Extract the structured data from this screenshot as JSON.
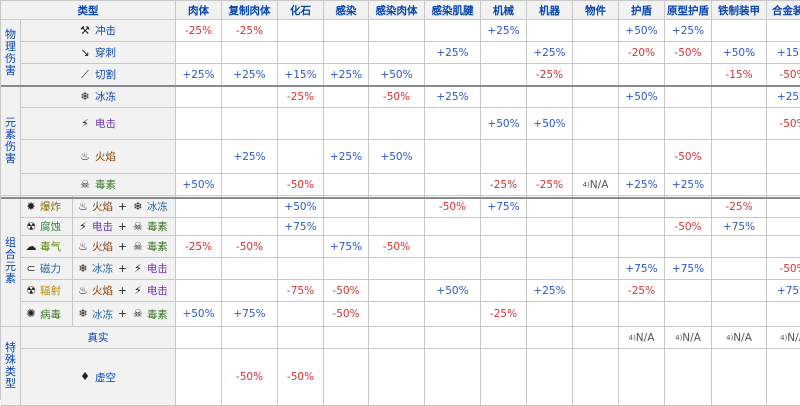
{
  "columns": [
    "类型",
    "肉体",
    "复制肉体",
    "化石",
    "感染",
    "感染肉体",
    "感染肌腱",
    "机械",
    "机器",
    "物件",
    "护盾",
    "原型护盾",
    "铁制装甲",
    "合金装甲"
  ],
  "groups": {
    "physical": [
      "物",
      "理",
      "伤",
      "害"
    ],
    "elemental": [
      "元",
      "素",
      "伤",
      "害"
    ],
    "combined": [
      "组",
      "合",
      "元",
      "素"
    ],
    "special": [
      "特",
      "殊",
      "类",
      "型"
    ]
  },
  "types": {
    "impact": "冲击",
    "puncture": "穿刺",
    "slash": "切割",
    "cold": "冰冻",
    "electric": "电击",
    "heat": "火焰",
    "toxin": "毒素",
    "blast": "爆炸",
    "corrosive": "腐蚀",
    "gas": "毒气",
    "magnetic": "磁力",
    "radiation": "辐射",
    "viral": "病毒",
    "true": "真实",
    "void": "虚空"
  },
  "components": {
    "plus": "+"
  },
  "rows": {
    "impact": [
      "-25%",
      "-25%",
      "",
      "",
      "",
      "",
      "+25%",
      "",
      "",
      "+50%",
      "+25%",
      "",
      ""
    ],
    "puncture": [
      "",
      "",
      "",
      "",
      "",
      "+25%",
      "",
      "+25%",
      "",
      "-20%",
      "-50%",
      "+50%",
      "+15%"
    ],
    "slash": [
      "+25%",
      "+25%",
      "+15%",
      "+25%",
      "+50%",
      "",
      "",
      "-25%",
      "",
      "",
      "",
      "-15%",
      "-50%"
    ],
    "cold": [
      "",
      "",
      "-25%",
      "",
      "-50%",
      "+25%",
      "",
      "",
      "",
      "+50%",
      "",
      "",
      "+25%"
    ],
    "electric": [
      "",
      "",
      "",
      "",
      "",
      "",
      "+50%",
      "+50%",
      "",
      "",
      "",
      "",
      "-50%"
    ],
    "heat": [
      "",
      "+25%",
      "",
      "+25%",
      "+50%",
      "",
      "",
      "",
      "",
      "",
      "-50%",
      "",
      ""
    ],
    "toxin": [
      "+50%",
      "",
      "-50%",
      "",
      "",
      "",
      "-25%",
      "-25%",
      "N/A",
      "+25%",
      "+25%",
      "",
      ""
    ],
    "blast": [
      "",
      "",
      "+50%",
      "",
      "",
      "-50%",
      "+75%",
      "",
      "",
      "",
      "",
      "-25%",
      ""
    ],
    "corrosive": [
      "",
      "",
      "+75%",
      "",
      "",
      "",
      "",
      "",
      "",
      "",
      "-50%",
      "+75%",
      ""
    ],
    "gas": [
      "-25%",
      "-50%",
      "",
      "+75%",
      "-50%",
      "",
      "",
      "",
      "",
      "",
      "",
      "",
      ""
    ],
    "magnetic": [
      "",
      "",
      "",
      "",
      "",
      "",
      "",
      "",
      "",
      "+75%",
      "+75%",
      "",
      "-50%"
    ],
    "radiation": [
      "",
      "",
      "-75%",
      "-50%",
      "",
      "+50%",
      "",
      "+25%",
      "",
      "-25%",
      "",
      "",
      "+75%"
    ],
    "viral": [
      "+50%",
      "+75%",
      "",
      "-50%",
      "",
      "",
      "-25%",
      "",
      "",
      "",
      "",
      "",
      ""
    ],
    "true": [
      "",
      "",
      "",
      "",
      "",
      "",
      "",
      "",
      "",
      "N/A",
      "N/A",
      "N/A",
      "N/A"
    ],
    "void": [
      "",
      "-50%",
      "-50%",
      "",
      "",
      "",
      "",
      "",
      "",
      "",
      "",
      "",
      ""
    ]
  },
  "na_note": "4)",
  "icons": {
    "impact": "hammer-icon",
    "puncture": "spear-icon",
    "slash": "claw-icon",
    "cold": "snowflake-icon",
    "electric": "bolt-icon",
    "heat": "flame-icon",
    "toxin": "skull-icon",
    "blast": "explosion-icon",
    "corrosive": "corrosion-icon",
    "gas": "gas-icon",
    "magnetic": "magnet-icon",
    "radiation": "radiation-icon",
    "viral": "virus-icon",
    "void": "void-icon"
  }
}
